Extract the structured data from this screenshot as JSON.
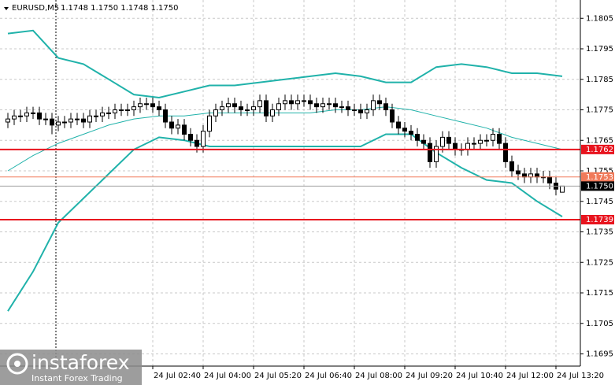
{
  "chart_data": {
    "type": "candlestick",
    "title": "EURUSD,M5",
    "subtitle": "1.1748 1.1750 1.1748 1.1750",
    "xlim": [
      -1.25,
      90.875
    ],
    "ylim": [
      1.1691,
      1.1811
    ],
    "yticks": [
      1.1805,
      1.1795,
      1.1785,
      1.1775,
      1.1765,
      1.1755,
      1.1745,
      1.1735,
      1.1725,
      1.1715,
      1.1705,
      1.1695
    ],
    "xticks": [
      {
        "value": 23,
        "label": "24 Jul 02:40"
      },
      {
        "value": 31,
        "label": "24 Jul 04:00"
      },
      {
        "value": 39,
        "label": "24 Jul 05:20"
      },
      {
        "value": 47,
        "label": "24 Jul 06:40"
      },
      {
        "value": 55,
        "label": "24 Jul 08:00"
      },
      {
        "value": 63,
        "label": "24 Jul 09:20"
      },
      {
        "value": 71,
        "label": "24 Jul 10:40"
      },
      {
        "value": 79,
        "label": "24 Jul 12:00"
      },
      {
        "value": 87,
        "label": "24 Jul 13:20"
      }
    ],
    "grid": true,
    "up_color": "#ffffff",
    "down_color": "#000000",
    "open": [
      1.1771,
      1.1772,
      1.1773,
      1.1773,
      1.1774,
      1.1774,
      1.1772,
      1.1772,
      1.177,
      1.1771,
      1.1771,
      1.1772,
      1.1772,
      1.1771,
      1.1773,
      1.1773,
      1.1774,
      1.1774,
      1.1775,
      1.1775,
      1.1775,
      1.1776,
      1.1777,
      1.1777,
      1.1776,
      1.1775,
      1.1771,
      1.1769,
      1.177,
      1.1767,
      1.1765,
      1.1763,
      1.1768,
      1.1773,
      1.1775,
      1.1776,
      1.1777,
      1.1776,
      1.1775,
      1.1775,
      1.1776,
      1.1778,
      1.1773,
      1.1775,
      1.1777,
      1.1778,
      1.1777,
      1.1778,
      1.1778,
      1.1777,
      1.1776,
      1.1777,
      1.1777,
      1.1776,
      1.1776,
      1.1775,
      1.1775,
      1.1774,
      1.1775,
      1.1778,
      1.1777,
      1.1775,
      1.1771,
      1.1769,
      1.1768,
      1.1767,
      1.1765,
      1.1764,
      1.1758,
      1.1763,
      1.1766,
      1.1764,
      1.1762,
      1.1762,
      1.1764,
      1.1764,
      1.1765,
      1.1765,
      1.1767,
      1.1764,
      1.1758,
      1.1755,
      1.1754,
      1.1753,
      1.1754,
      1.1753,
      1.1753,
      1.1751,
      1.1748
    ],
    "high": [
      1.1774,
      1.1775,
      1.1775,
      1.1776,
      1.1776,
      1.1776,
      1.1774,
      1.1774,
      1.1773,
      1.1773,
      1.1774,
      1.1774,
      1.1774,
      1.1775,
      1.1775,
      1.1776,
      1.1776,
      1.1777,
      1.1777,
      1.1777,
      1.1778,
      1.1779,
      1.1779,
      1.1779,
      1.1778,
      1.1777,
      1.1773,
      1.1772,
      1.1772,
      1.1769,
      1.1767,
      1.177,
      1.1775,
      1.1777,
      1.1778,
      1.1779,
      1.1779,
      1.1778,
      1.1777,
      1.1778,
      1.178,
      1.178,
      1.1777,
      1.1779,
      1.178,
      1.178,
      1.178,
      1.178,
      1.178,
      1.1779,
      1.1779,
      1.1779,
      1.1779,
      1.1778,
      1.1778,
      1.1777,
      1.1777,
      1.1777,
      1.178,
      1.178,
      1.1779,
      1.1777,
      1.1773,
      1.1771,
      1.177,
      1.1769,
      1.1767,
      1.1766,
      1.1765,
      1.1768,
      1.1768,
      1.1766,
      1.1764,
      1.1766,
      1.1766,
      1.1767,
      1.1767,
      1.1769,
      1.1769,
      1.1766,
      1.176,
      1.1757,
      1.1756,
      1.1756,
      1.1756,
      1.1755,
      1.1755,
      1.1753,
      1.175
    ],
    "low": [
      1.1769,
      1.177,
      1.1771,
      1.1771,
      1.1772,
      1.177,
      1.177,
      1.1767,
      1.1768,
      1.1769,
      1.1769,
      1.177,
      1.1769,
      1.1769,
      1.1771,
      1.1771,
      1.1772,
      1.1772,
      1.1773,
      1.1773,
      1.1773,
      1.1774,
      1.1775,
      1.1774,
      1.1773,
      1.1769,
      1.1767,
      1.1767,
      1.1765,
      1.1763,
      1.1761,
      1.1761,
      1.1766,
      1.1771,
      1.1773,
      1.1774,
      1.1774,
      1.1773,
      1.1773,
      1.1773,
      1.1774,
      1.1771,
      1.1771,
      1.1773,
      1.1775,
      1.1775,
      1.1775,
      1.1776,
      1.1775,
      1.1774,
      1.1774,
      1.1775,
      1.1774,
      1.1774,
      1.1773,
      1.1773,
      1.1772,
      1.1772,
      1.1773,
      1.1775,
      1.1773,
      1.1769,
      1.1767,
      1.1766,
      1.1765,
      1.1763,
      1.1762,
      1.1756,
      1.1756,
      1.1761,
      1.1762,
      1.176,
      1.176,
      1.176,
      1.1762,
      1.1762,
      1.1763,
      1.1763,
      1.1762,
      1.1756,
      1.1753,
      1.1752,
      1.1751,
      1.1751,
      1.1751,
      1.1751,
      1.1749,
      1.1747,
      1.1748
    ],
    "close": [
      1.1772,
      1.1773,
      1.1773,
      1.1774,
      1.1774,
      1.1772,
      1.1772,
      1.177,
      1.1771,
      1.1771,
      1.1772,
      1.1772,
      1.1771,
      1.1773,
      1.1773,
      1.1774,
      1.1774,
      1.1775,
      1.1775,
      1.1775,
      1.1776,
      1.1777,
      1.1777,
      1.1776,
      1.1775,
      1.1771,
      1.1769,
      1.177,
      1.1767,
      1.1765,
      1.1763,
      1.1768,
      1.1773,
      1.1775,
      1.1776,
      1.1777,
      1.1776,
      1.1775,
      1.1775,
      1.1776,
      1.1778,
      1.1773,
      1.1775,
      1.1777,
      1.1778,
      1.1777,
      1.1778,
      1.1778,
      1.1777,
      1.1776,
      1.1777,
      1.1777,
      1.1776,
      1.1776,
      1.1775,
      1.1775,
      1.1774,
      1.1775,
      1.1778,
      1.1777,
      1.1775,
      1.1771,
      1.1769,
      1.1768,
      1.1767,
      1.1765,
      1.1764,
      1.1758,
      1.1763,
      1.1766,
      1.1764,
      1.1762,
      1.1762,
      1.1764,
      1.1764,
      1.1765,
      1.1765,
      1.1767,
      1.1764,
      1.1758,
      1.1755,
      1.1754,
      1.1753,
      1.1754,
      1.1753,
      1.1753,
      1.1751,
      1.1749,
      1.175
    ],
    "bands": {
      "color": "#20b2aa",
      "x": [
        0,
        4,
        8,
        12,
        16,
        20,
        24,
        28,
        32,
        36,
        40,
        44,
        48,
        52,
        56,
        60,
        64,
        68,
        72,
        76,
        80,
        84,
        88
      ],
      "upper": [
        1.18,
        1.1801,
        1.1792,
        1.179,
        1.1785,
        1.178,
        1.1779,
        1.1781,
        1.1783,
        1.1783,
        1.1784,
        1.1785,
        1.1786,
        1.1787,
        1.1786,
        1.1784,
        1.1784,
        1.1789,
        1.179,
        1.1789,
        1.1787,
        1.1787,
        1.1786
      ],
      "middle": [
        1.1755,
        1.176,
        1.1764,
        1.1767,
        1.177,
        1.1772,
        1.1773,
        1.1773,
        1.1774,
        1.1774,
        1.1774,
        1.1774,
        1.1774,
        1.1775,
        1.1775,
        1.1776,
        1.1775,
        1.1773,
        1.1771,
        1.1769,
        1.1766,
        1.1764,
        1.1762
      ],
      "lower": [
        1.1709,
        1.1722,
        1.1738,
        1.1746,
        1.1754,
        1.1762,
        1.1766,
        1.1765,
        1.1763,
        1.1763,
        1.1763,
        1.1763,
        1.1763,
        1.1763,
        1.1763,
        1.1767,
        1.1767,
        1.1761,
        1.1756,
        1.1752,
        1.1751,
        1.1745,
        1.174
      ]
    },
    "levels": [
      {
        "value": 1.1762,
        "color": "#e8141e"
      },
      {
        "value": 1.1753,
        "color": "#f07a5a"
      },
      {
        "value": 1.1739,
        "color": "#e8141e"
      },
      {
        "value": 1.175,
        "label": "1.1750",
        "color": "#000000"
      }
    ]
  },
  "watermark": {
    "brand": "instaforex",
    "tagline": "Instant Forex Trading"
  }
}
